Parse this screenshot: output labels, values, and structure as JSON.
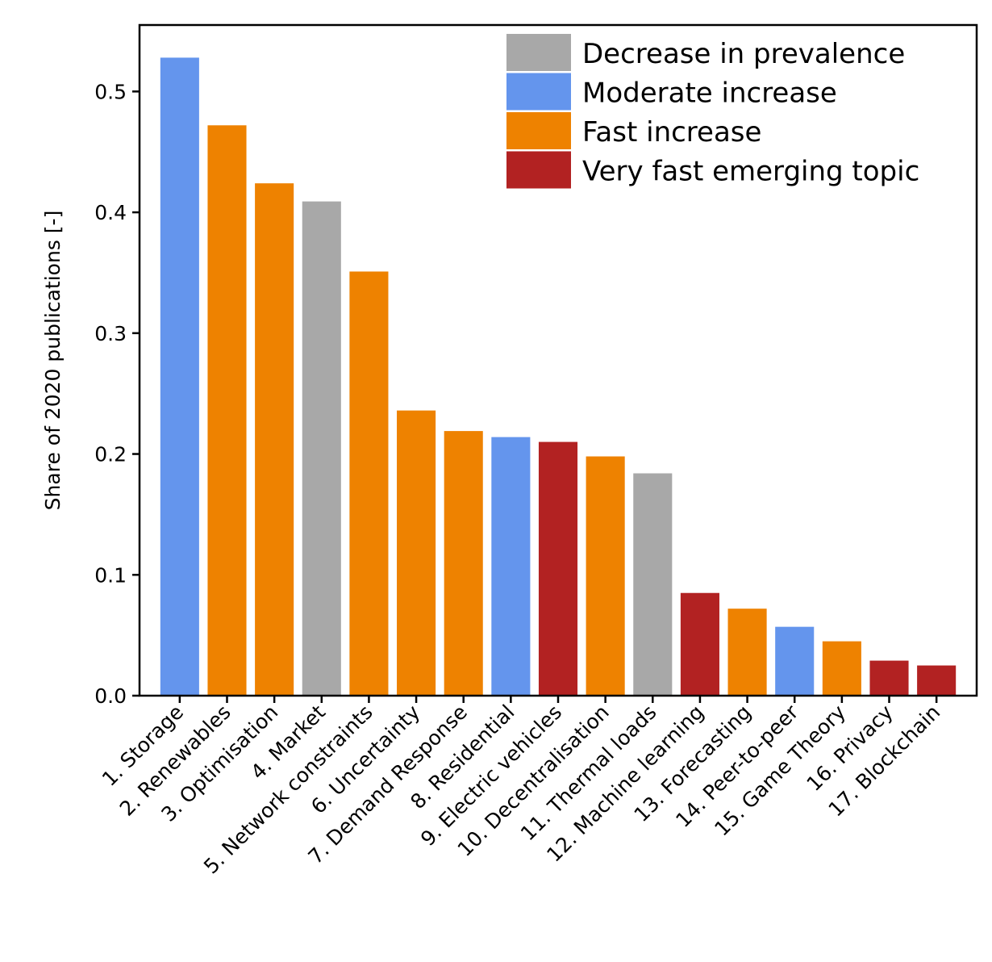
{
  "chart_data": {
    "type": "bar",
    "title": "",
    "xlabel": "",
    "ylabel": "Share of 2020 publications [-]",
    "ylim": [
      0,
      0.555
    ],
    "yticks": [
      0.0,
      0.1,
      0.2,
      0.3,
      0.4,
      0.5
    ],
    "ytick_labels": [
      "0.0",
      "0.1",
      "0.2",
      "0.3",
      "0.4",
      "0.5"
    ],
    "grid": false,
    "legend_position": "top-right",
    "groups": [
      {
        "key": "decrease",
        "label": "Decrease in prevalence",
        "color": "#a8a8a8"
      },
      {
        "key": "moderate",
        "label": "Moderate increase",
        "color": "#6495ed"
      },
      {
        "key": "fast",
        "label": "Fast increase",
        "color": "#ee8200"
      },
      {
        "key": "very_fast",
        "label": "Very fast emerging topic",
        "color": "#b22222"
      }
    ],
    "categories": [
      "1. Storage",
      "2. Renewables",
      "3. Optimisation",
      "4. Market",
      "5. Network constraints",
      "6. Uncertainty",
      "7. Demand Response",
      "8. Residential",
      "9. Electric vehicles",
      "10. Decentralisation",
      "11. Thermal loads",
      "12. Machine learning",
      "13. Forecasting",
      "14. Peer-to-peer",
      "15. Game Theory",
      "16. Privacy",
      "17. Blockchain"
    ],
    "values": [
      0.528,
      0.472,
      0.424,
      0.409,
      0.351,
      0.236,
      0.219,
      0.214,
      0.21,
      0.198,
      0.184,
      0.085,
      0.072,
      0.057,
      0.045,
      0.029,
      0.025
    ],
    "bar_groups": [
      "moderate",
      "fast",
      "fast",
      "decrease",
      "fast",
      "fast",
      "fast",
      "moderate",
      "very_fast",
      "fast",
      "decrease",
      "very_fast",
      "fast",
      "moderate",
      "fast",
      "very_fast",
      "very_fast"
    ]
  }
}
